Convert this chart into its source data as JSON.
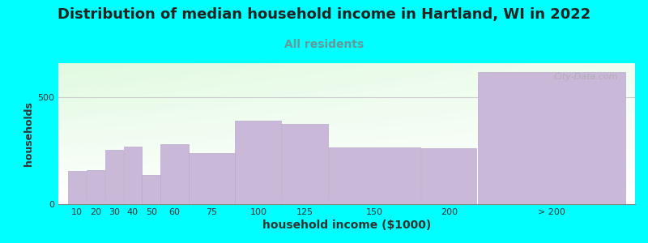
{
  "title": "Distribution of median household income in Hartland, WI in 2022",
  "subtitle": "All residents",
  "xlabel": "household income ($1000)",
  "ylabel": "households",
  "background_outer": "#00FFFF",
  "bar_color": "#c9b8d8",
  "bar_edge_color": "#b8a8cc",
  "title_fontsize": 13,
  "subtitle_fontsize": 10,
  "subtitle_color": "#669999",
  "xlabel_fontsize": 10,
  "ylabel_fontsize": 9,
  "watermark": "City-Data.com",
  "positions": [
    10,
    20,
    30,
    40,
    50,
    60,
    75,
    100,
    125,
    150,
    200,
    230
  ],
  "widths": [
    10,
    10,
    10,
    10,
    10,
    15,
    25,
    25,
    25,
    50,
    30,
    80
  ],
  "heights": [
    155,
    160,
    255,
    270,
    135,
    280,
    240,
    390,
    375,
    265,
    260,
    620
  ],
  "tick_labels": [
    "10",
    "20",
    "30",
    "40",
    "50",
    "60",
    "75",
    "100",
    "125",
    "150",
    "200",
    "> 200"
  ],
  "xlim_min": 5,
  "xlim_max": 315,
  "ylim": [
    0,
    660
  ],
  "yticks": [
    0,
    500
  ],
  "ytick_labels": [
    "0",
    "500"
  ]
}
